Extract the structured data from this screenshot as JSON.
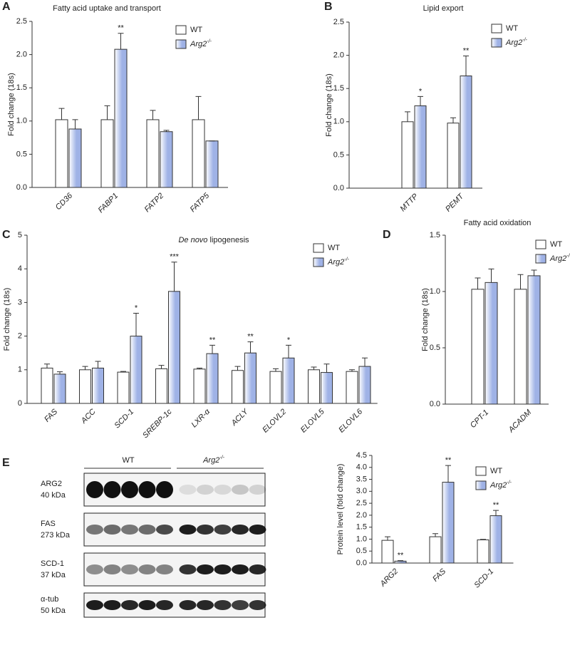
{
  "chart_data": [
    {
      "type": "bar",
      "panel": "A",
      "title": "Fatty acid uptake and transport",
      "ylabel": "Fold change (18s)",
      "categories": [
        "CD36",
        "FABP1",
        "FATP2",
        "FATP5"
      ],
      "series": [
        {
          "name": "WT",
          "color": "#ffffff",
          "values": [
            1.02,
            1.02,
            1.02,
            1.02
          ],
          "errors": [
            0.17,
            0.21,
            0.14,
            0.35
          ]
        },
        {
          "name": "Arg2",
          "superscript": "-/-",
          "color": "#9fb2e6",
          "values": [
            0.88,
            2.08,
            0.84,
            0.7
          ],
          "errors": [
            0.14,
            0.24,
            0.02,
            0
          ]
        }
      ],
      "significance": [
        null,
        "**",
        null,
        null
      ],
      "ylim": [
        0,
        2.5
      ],
      "yticks": [
        {
          "value": 0,
          "label": "0.0"
        },
        {
          "value": 0.5,
          "label": "0.5"
        },
        {
          "value": 1,
          "label": "1.0"
        },
        {
          "value": 1.5,
          "label": "1.5"
        },
        {
          "value": 2,
          "label": "2.0"
        },
        {
          "value": 2.5,
          "label": "2.5"
        }
      ]
    },
    {
      "type": "bar",
      "panel": "B",
      "title": "Lipid export",
      "ylabel": "Fold change (18s)",
      "categories": [
        "MTTP",
        "PEMT"
      ],
      "series": [
        {
          "name": "WT",
          "color": "#ffffff",
          "values": [
            1.0,
            0.98
          ],
          "errors": [
            0.15,
            0.08
          ]
        },
        {
          "name": "Arg2",
          "superscript": "-/-",
          "color": "#9fb2e6",
          "values": [
            1.24,
            1.69
          ],
          "errors": [
            0.14,
            0.3
          ]
        }
      ],
      "significance": [
        "*",
        "**"
      ],
      "ylim": [
        0,
        2.5
      ],
      "yticks": [
        {
          "value": 0,
          "label": "0.0"
        },
        {
          "value": 0.5,
          "label": "0.5"
        },
        {
          "value": 1,
          "label": "1.0"
        },
        {
          "value": 1.5,
          "label": "1.5"
        },
        {
          "value": 2,
          "label": "2.0"
        },
        {
          "value": 2.5,
          "label": "2.5"
        }
      ]
    },
    {
      "type": "bar",
      "panel": "C",
      "title_italic": "De novo",
      "title": "lipogenesis",
      "ylabel": "Fold change (18s)",
      "categories": [
        "FAS",
        "ACC",
        "SCD-1",
        "SREBP-1c",
        "LXR-α",
        "ACLY",
        "ELOVL2",
        "ELOVL5",
        "ELOVL6"
      ],
      "series": [
        {
          "name": "WT",
          "color": "#ffffff",
          "values": [
            1.05,
            1.0,
            0.93,
            1.03,
            1.02,
            0.98,
            0.95,
            1.0,
            0.95
          ],
          "errors": [
            0.12,
            0.1,
            0.02,
            0.1,
            0.03,
            0.12,
            0.08,
            0.08,
            0.05
          ]
        },
        {
          "name": "Arg2",
          "superscript": "-/-",
          "color": "#9fb2e6",
          "values": [
            0.87,
            1.05,
            2.0,
            3.33,
            1.48,
            1.5,
            1.35,
            0.92,
            1.1
          ],
          "errors": [
            0.07,
            0.2,
            0.68,
            0.87,
            0.25,
            0.33,
            0.38,
            0.25,
            0.25
          ]
        }
      ],
      "significance": [
        null,
        null,
        "*",
        "***",
        "**",
        "**",
        "*",
        null,
        null
      ],
      "ylim": [
        0,
        5
      ],
      "yticks": [
        0,
        1,
        2,
        3,
        4,
        5
      ]
    },
    {
      "type": "bar",
      "panel": "D",
      "title": "Fatty acid oxidation",
      "ylabel": "Fold change (18s)",
      "categories": [
        "CPT-1",
        "ACADM"
      ],
      "series": [
        {
          "name": "WT",
          "color": "#ffffff",
          "values": [
            1.02,
            1.02
          ],
          "errors": [
            0.1,
            0.13
          ]
        },
        {
          "name": "Arg2",
          "superscript": "-/-",
          "color": "#9fb2e6",
          "values": [
            1.08,
            1.14
          ],
          "errors": [
            0.12,
            0.05
          ]
        }
      ],
      "significance": [
        null,
        null
      ],
      "ylim": [
        0,
        1.5
      ],
      "yticks": [
        {
          "value": 0,
          "label": "0.0"
        },
        {
          "value": 0.5,
          "label": "0.5"
        },
        {
          "value": 1,
          "label": "1.0"
        },
        {
          "value": 1.5,
          "label": "1.5"
        }
      ]
    },
    {
      "type": "bar",
      "panel": "E",
      "ylabel": "Protein level (fold change)",
      "categories": [
        "ARG2",
        "FAS",
        "SCD-1"
      ],
      "series": [
        {
          "name": "WT",
          "color": "#ffffff",
          "values": [
            0.95,
            1.1,
            0.97
          ],
          "errors": [
            0.15,
            0.13,
            0.02
          ]
        },
        {
          "name": "Arg2",
          "superscript": "-/-",
          "color": "#9fb2e6",
          "values": [
            0.08,
            3.38,
            1.98
          ],
          "errors": [
            0.02,
            0.7,
            0.22
          ]
        }
      ],
      "significance": [
        "**",
        "**",
        "**"
      ],
      "ylim": [
        0,
        4.5
      ],
      "yticks": [
        {
          "value": 0,
          "label": "0.0"
        },
        {
          "value": 0.5,
          "label": "0.5"
        },
        {
          "value": 1,
          "label": "1.0"
        },
        {
          "value": 1.5,
          "label": "1.5"
        },
        {
          "value": 2,
          "label": "2.0"
        },
        {
          "value": 2.5,
          "label": "2.5"
        },
        {
          "value": 3,
          "label": "3.0"
        },
        {
          "value": 3.5,
          "label": "3.5"
        },
        {
          "value": 4,
          "label": "4.0"
        },
        {
          "value": 4.5,
          "label": "4.5"
        }
      ]
    }
  ],
  "blot": {
    "groups": [
      {
        "name": "WT"
      },
      {
        "name": "Arg2",
        "superscript": "-/-"
      }
    ],
    "rows": [
      {
        "protein": "ARG2",
        "size": "40 kDa"
      },
      {
        "protein": "FAS",
        "size": "273 kDa"
      },
      {
        "protein": "SCD-1",
        "size": "37 kDa"
      },
      {
        "protein": "α-tub",
        "size": "50 kDa"
      }
    ]
  }
}
